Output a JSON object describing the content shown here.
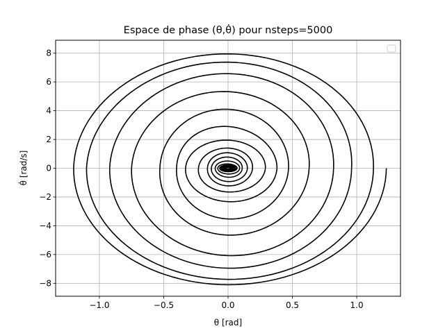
{
  "chart_data": {
    "type": "line",
    "title": "Espace de phase (θ,θ̇) pour nsteps=5000",
    "xlabel": "θ [rad]",
    "ylabel": "θ̇ [rad/s]",
    "xlim": [
      -1.34,
      1.34
    ],
    "ylim": [
      -8.9,
      8.9
    ],
    "xticks": [
      -1.0,
      -0.5,
      0.0,
      0.5,
      1.0
    ],
    "xtick_labels": [
      "−1.0",
      "−0.5",
      "0.0",
      "0.5",
      "1.0"
    ],
    "yticks": [
      -8,
      -6,
      -4,
      -2,
      0,
      2,
      4,
      6,
      8
    ],
    "ytick_labels": [
      "−8",
      "−6",
      "−4",
      "−2",
      "0",
      "2",
      "4",
      "6",
      "8"
    ],
    "grid": true,
    "legend": "top-right",
    "legend_entries": [],
    "line_color": "#000000",
    "series": [
      {
        "description_points": "decaying spiral trajectory in phase space; envelope amplitude per half-turn",
        "theta_amplitudes": [
          1.23,
          1.2,
          1.13,
          1.1,
          0.96,
          0.92,
          0.82,
          0.75,
          0.63,
          0.53,
          0.47,
          0.4,
          0.38,
          0.33,
          0.29,
          0.23,
          0.19,
          0.16,
          0.15,
          0.13,
          0.11,
          0.1,
          0.09,
          0.08,
          0.07
        ],
        "omega_amplitudes": [
          8.15,
          8.05,
          7.85,
          7.6,
          7.15,
          6.75,
          6.4,
          5.75,
          4.9,
          4.4,
          3.8,
          3.25,
          2.55,
          2.1,
          1.8,
          1.5,
          1.3,
          1.15,
          1.0,
          0.85,
          0.7,
          0.55,
          0.45,
          0.35,
          0.25
        ]
      }
    ]
  }
}
